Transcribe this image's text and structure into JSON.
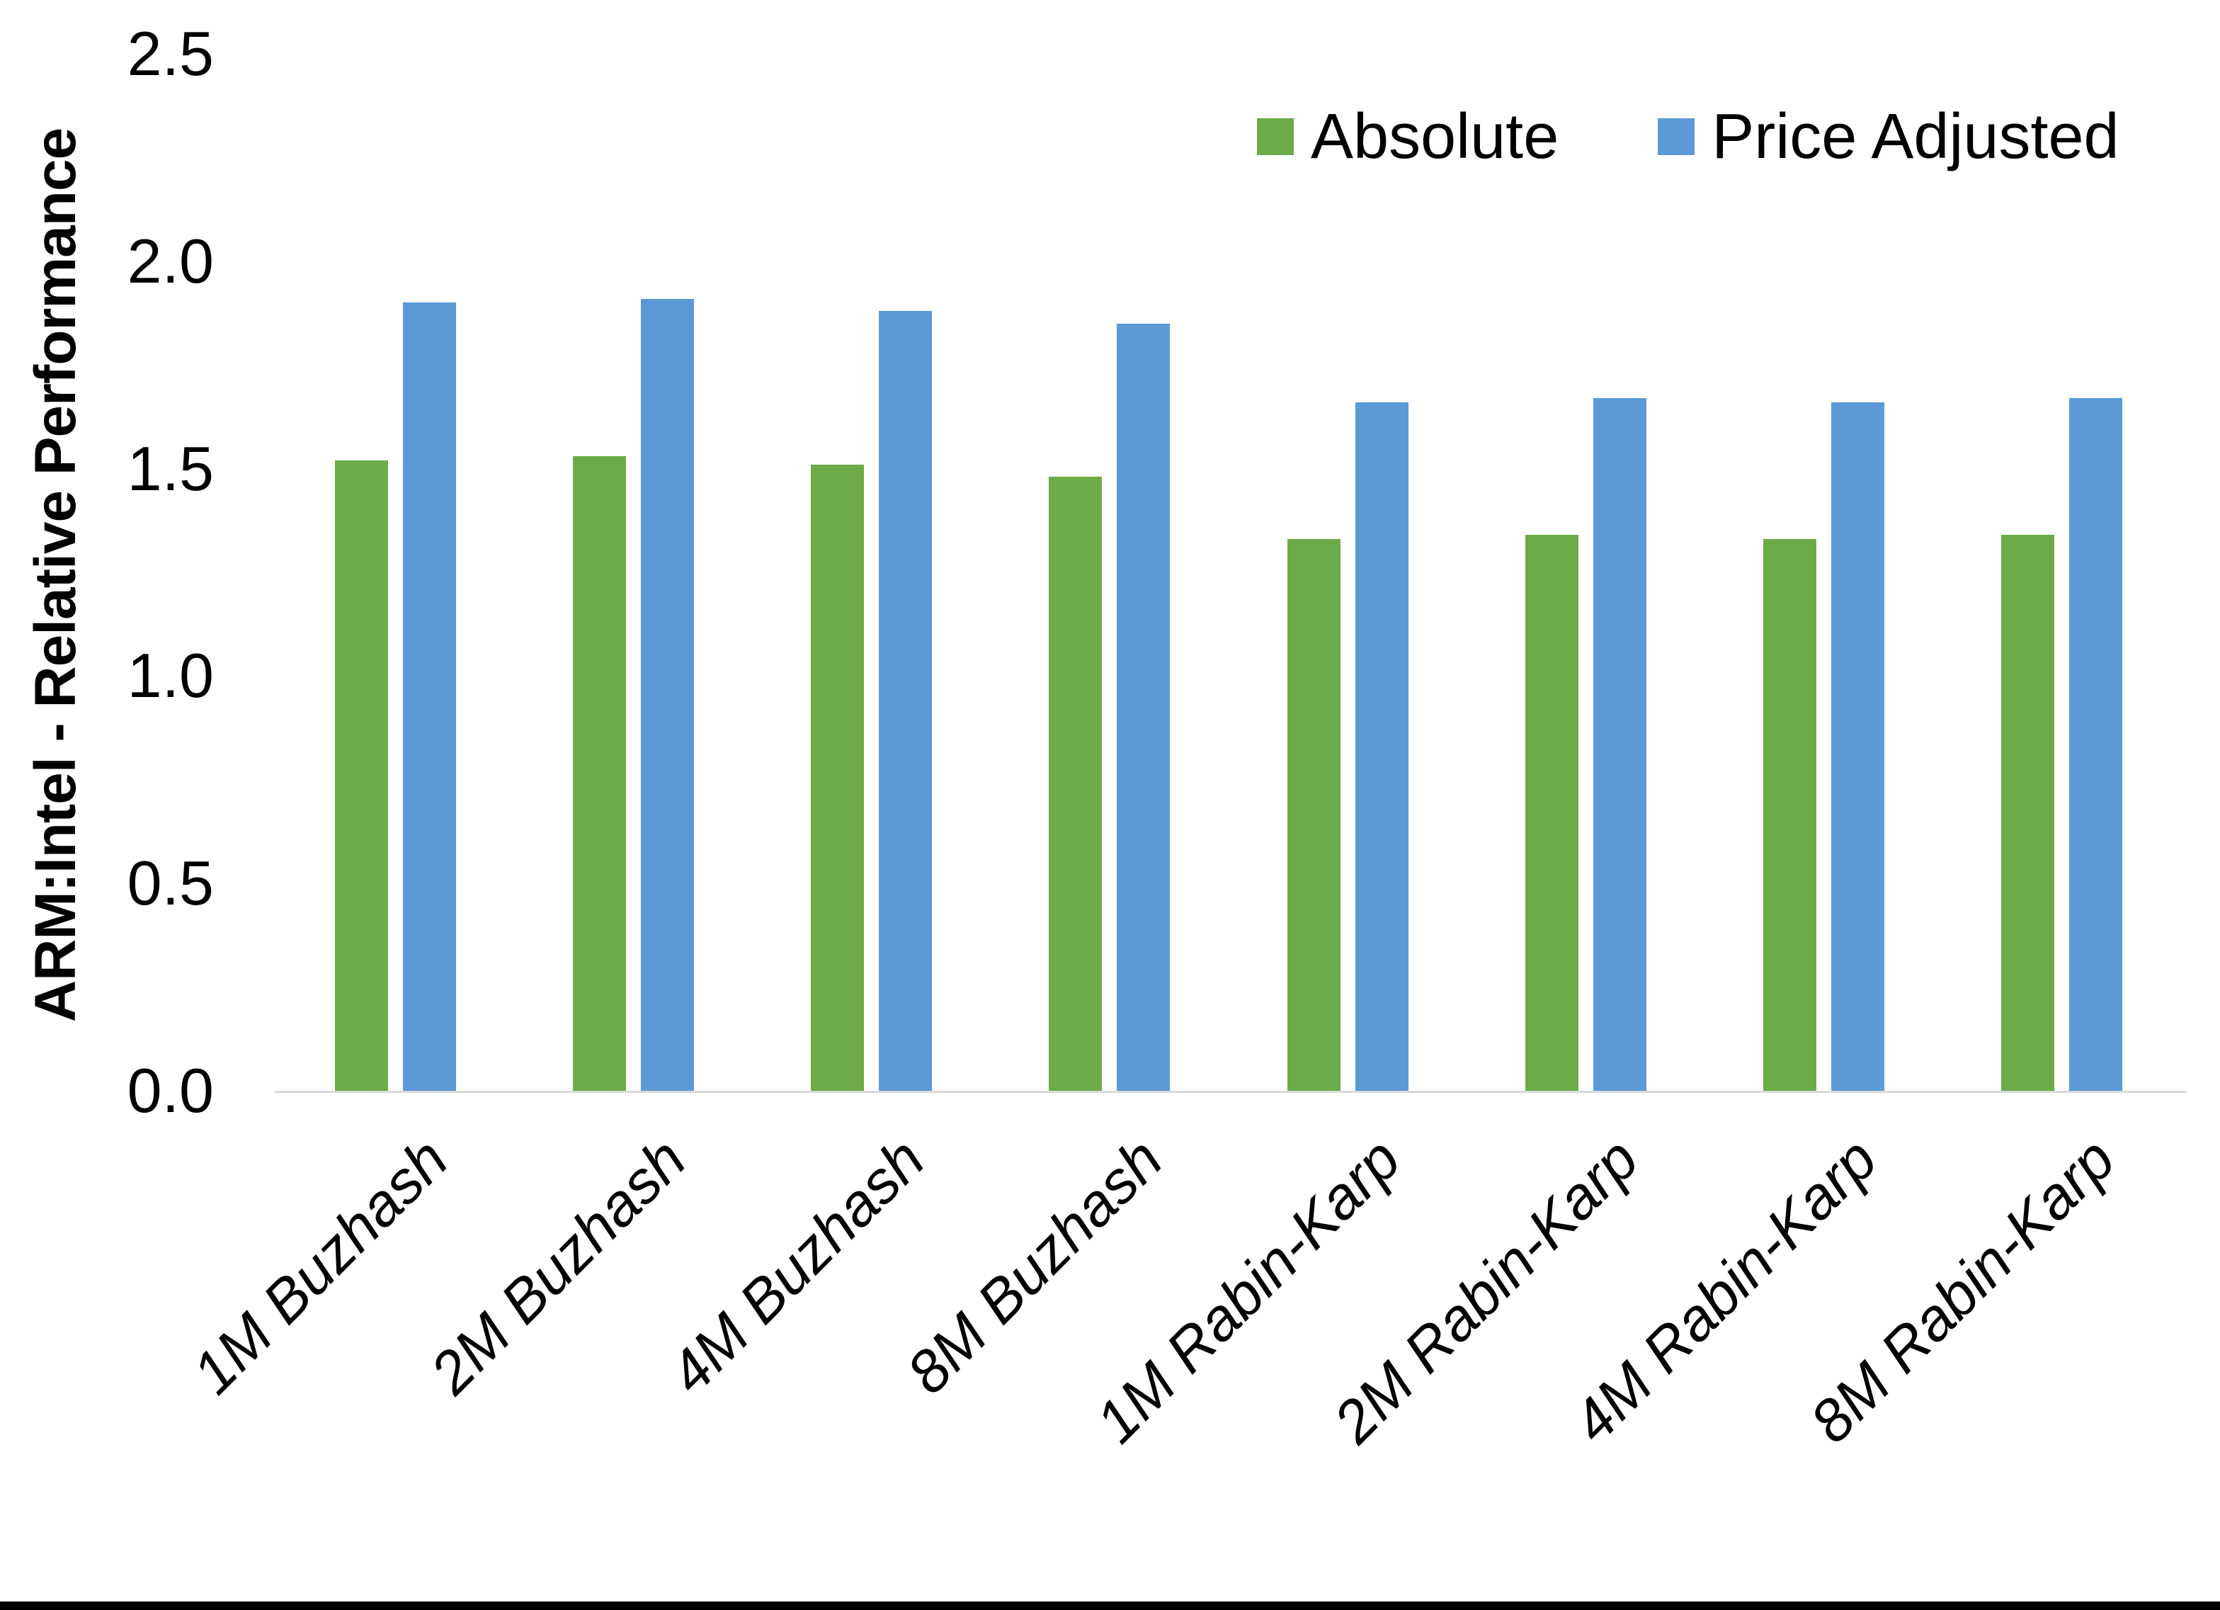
{
  "chart_data": {
    "type": "bar",
    "title": "",
    "xlabel": "",
    "ylabel": "ARM:Intel - Relative Performance",
    "categories": [
      "1M Buzhash",
      "2M Buzhash",
      "4M Buzhash",
      "8M Buzhash",
      "1M Rabin-Karp",
      "2M Rabin-Karp",
      "4M Rabin-Karp",
      "8M Rabin-Karp"
    ],
    "series": [
      {
        "name": "Absolute",
        "color": "#6CAB48",
        "values": [
          1.52,
          1.53,
          1.51,
          1.48,
          1.33,
          1.34,
          1.33,
          1.34
        ]
      },
      {
        "name": "Price Adjusted",
        "color": "#5B9AD7",
        "values": [
          1.9,
          1.91,
          1.88,
          1.85,
          1.66,
          1.67,
          1.66,
          1.67
        ]
      }
    ],
    "ylim": [
      0,
      2.5
    ],
    "ytick_step": 0.5,
    "ytick_labels": [
      "0.0",
      "0.5",
      "1.0",
      "1.5",
      "2.0",
      "2.5"
    ],
    "grid": false,
    "legend_position": "top-right-inside",
    "axis_line_color": "#D9D9D9",
    "background_color": "#FFFFFF",
    "bottom_border_color": "#000000"
  }
}
